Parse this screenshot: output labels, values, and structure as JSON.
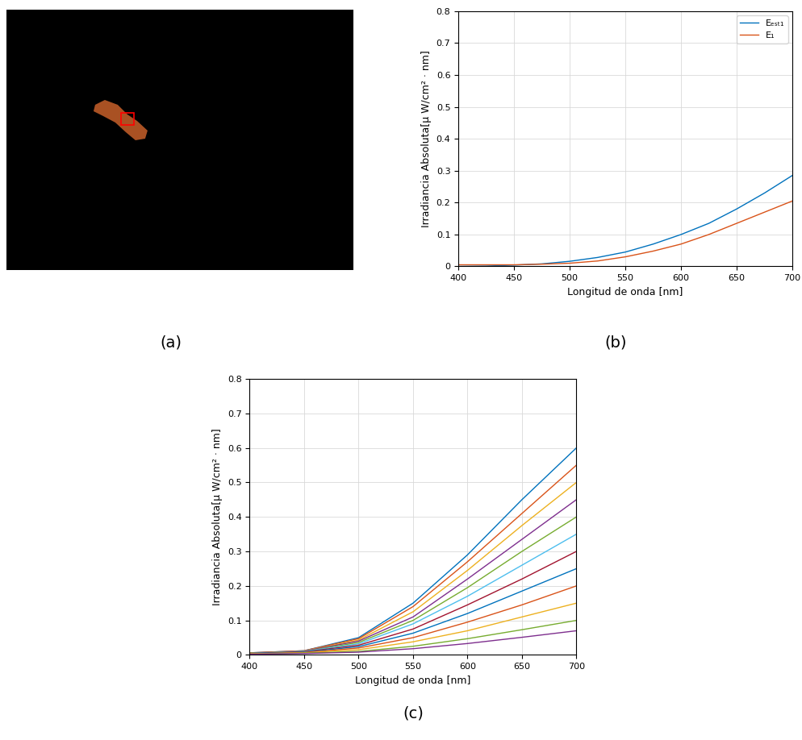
{
  "image": {
    "caption": "(a)"
  },
  "chart_data": [
    {
      "type": "line",
      "caption": "(b)",
      "x_label": "Longitud de onda [nm]",
      "y_label": "Irradiancia Absoluta[μ W/cm² · nm]",
      "x": [
        400,
        425,
        450,
        475,
        500,
        525,
        550,
        575,
        600,
        625,
        650,
        675,
        700
      ],
      "series": [
        {
          "name": "Eₑₛₜ₁",
          "color": "#0072BD",
          "values": [
            0.0,
            0.001,
            0.004,
            0.008,
            0.016,
            0.028,
            0.045,
            0.07,
            0.1,
            0.135,
            0.18,
            0.23,
            0.285
          ]
        },
        {
          "name": "E₁",
          "color": "#D95319",
          "values": [
            0.005,
            0.005,
            0.005,
            0.007,
            0.01,
            0.017,
            0.03,
            0.048,
            0.07,
            0.1,
            0.135,
            0.17,
            0.205
          ]
        }
      ],
      "xlim": [
        400,
        700
      ],
      "xticks": [
        400,
        450,
        500,
        550,
        600,
        650,
        700
      ],
      "ylim": [
        0,
        0.8
      ],
      "yticks": [
        0,
        0.1,
        0.2,
        0.3,
        0.4,
        0.5,
        0.6,
        0.7,
        0.8
      ],
      "grid": true,
      "legend": "upper right"
    },
    {
      "type": "line",
      "caption": "(c)",
      "x_label": "Longitud de onda [nm]",
      "y_label": "Irradiancia Absoluta[μ W/cm² · nm]",
      "x": [
        400,
        450,
        500,
        550,
        600,
        650,
        700
      ],
      "series": [
        {
          "color": "#0072BD",
          "values": [
            0.006,
            0.012,
            0.05,
            0.15,
            0.29,
            0.45,
            0.6
          ]
        },
        {
          "color": "#D95319",
          "values": [
            0.006,
            0.012,
            0.047,
            0.14,
            0.27,
            0.41,
            0.55
          ]
        },
        {
          "color": "#EDB120",
          "values": [
            0.005,
            0.011,
            0.043,
            0.125,
            0.245,
            0.375,
            0.5
          ]
        },
        {
          "color": "#7E2F8E",
          "values": [
            0.005,
            0.011,
            0.04,
            0.11,
            0.22,
            0.335,
            0.45
          ]
        },
        {
          "color": "#77AC30",
          "values": [
            0.005,
            0.01,
            0.036,
            0.1,
            0.195,
            0.3,
            0.4
          ]
        },
        {
          "color": "#4DBEEE",
          "values": [
            0.004,
            0.01,
            0.032,
            0.09,
            0.17,
            0.26,
            0.35
          ]
        },
        {
          "color": "#A2142F",
          "values": [
            0.004,
            0.009,
            0.028,
            0.075,
            0.145,
            0.22,
            0.3
          ]
        },
        {
          "color": "#0072BD",
          "values": [
            0.004,
            0.008,
            0.024,
            0.063,
            0.12,
            0.185,
            0.25
          ]
        },
        {
          "color": "#D95319",
          "values": [
            0.003,
            0.007,
            0.02,
            0.05,
            0.095,
            0.145,
            0.2
          ]
        },
        {
          "color": "#EDB120",
          "values": [
            0.003,
            0.006,
            0.015,
            0.038,
            0.07,
            0.11,
            0.15
          ]
        },
        {
          "color": "#77AC30",
          "values": [
            0.002,
            0.005,
            0.01,
            0.025,
            0.047,
            0.073,
            0.1
          ]
        },
        {
          "color": "#7E2F8E",
          "values": [
            0.002,
            0.004,
            0.008,
            0.018,
            0.033,
            0.051,
            0.07
          ]
        }
      ],
      "xlim": [
        400,
        700
      ],
      "xticks": [
        400,
        450,
        500,
        550,
        600,
        650,
        700
      ],
      "ylim": [
        0,
        0.8
      ],
      "yticks": [
        0,
        0.1,
        0.2,
        0.3,
        0.4,
        0.5,
        0.6,
        0.7,
        0.8
      ],
      "grid": true
    }
  ]
}
